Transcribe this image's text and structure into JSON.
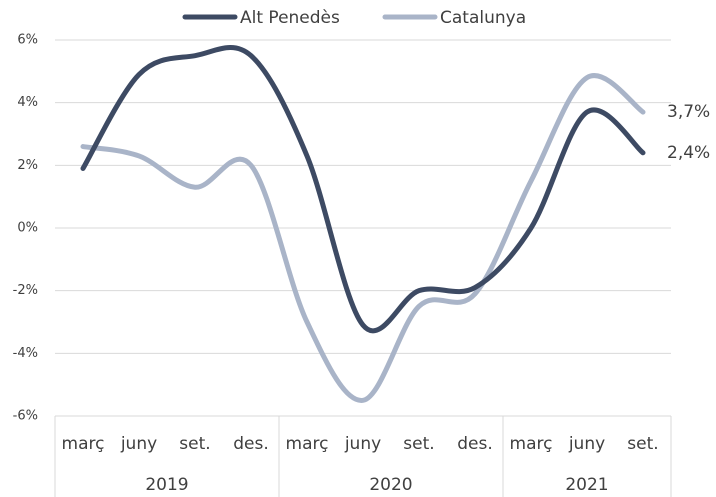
{
  "chart_data": {
    "type": "line",
    "category_groups": [
      {
        "label": "2019",
        "categories": [
          "març",
          "juny",
          "set.",
          "des."
        ]
      },
      {
        "label": "2020",
        "categories": [
          "març",
          "juny",
          "set.",
          "des."
        ]
      },
      {
        "label": "2021",
        "categories": [
          "març",
          "juny",
          "set."
        ]
      }
    ],
    "series": [
      {
        "name": "Alt Penedès",
        "color": "#3d4a63",
        "values": [
          1.9,
          4.9,
          5.5,
          5.5,
          2.3,
          -3.1,
          -2.0,
          -1.9,
          0.0,
          3.7,
          2.4
        ],
        "value_labels": [
          null,
          null,
          null,
          null,
          null,
          null,
          null,
          null,
          null,
          null,
          "2,4%"
        ]
      },
      {
        "name": "Catalunya",
        "color": "#a9b4c8",
        "values": [
          2.6,
          2.3,
          1.3,
          2.0,
          -3.0,
          -5.5,
          -2.5,
          -2.1,
          1.5,
          4.8,
          3.7
        ],
        "value_labels": [
          null,
          null,
          null,
          null,
          null,
          null,
          null,
          null,
          null,
          null,
          "3,7%"
        ]
      }
    ],
    "ylim": [
      -6,
      6
    ],
    "yticks": [
      {
        "value": -6,
        "label": "-6%"
      },
      {
        "value": -4,
        "label": "-4%"
      },
      {
        "value": -2,
        "label": "-2%"
      },
      {
        "value": 0,
        "label": "0%"
      },
      {
        "value": 2,
        "label": "2%"
      },
      {
        "value": 4,
        "label": "4%"
      },
      {
        "value": 6,
        "label": "6%"
      }
    ],
    "grid": true,
    "legend": "top"
  }
}
